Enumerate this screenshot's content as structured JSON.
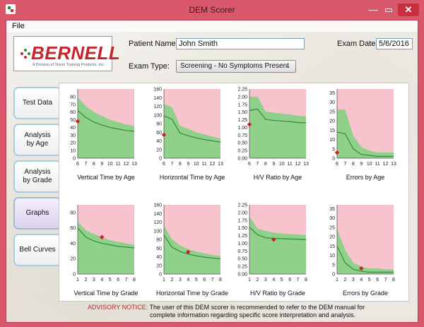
{
  "window": {
    "title": "DEM Scorer",
    "min_glyph": "—",
    "max_glyph": "▭",
    "close_glyph": "✕"
  },
  "menu": {
    "file": "File"
  },
  "logo": {
    "name": "BERNELL",
    "subtitle": "A Division of Vision Training Products, Inc."
  },
  "patient": {
    "name_label": "Patient Name:",
    "name_value": "John Smith",
    "exam_date_label": "Exam Date:",
    "exam_date_value": "5/6/2016",
    "exam_type_label": "Exam Type:",
    "exam_type_value": "Screening - No Symptoms Present"
  },
  "tabs": [
    {
      "label": "Test Data",
      "active": false
    },
    {
      "label": "Analysis by Age",
      "active": false
    },
    {
      "label": "Analysis by Grade",
      "active": false
    },
    {
      "label": "Graphs",
      "active": true
    },
    {
      "label": "Bell Curves",
      "active": false
    }
  ],
  "advisory": {
    "heading": "ADVISORY NOTICE:",
    "line1": "The user of this DEM scorer is recommended to refer to the DEM manual for",
    "line2": "complete information regarding specific score interpretation and analysis."
  },
  "colors": {
    "pink": "#f7c3cc",
    "band": "#8fd18a",
    "line": "#2f8a3a",
    "marker": "#cc1f1f"
  },
  "chart_data": [
    {
      "type": "area",
      "title": "Vertical Time by Age",
      "x": [
        6,
        7,
        8,
        9,
        10,
        11,
        12,
        13
      ],
      "xlim": [
        6,
        13
      ],
      "ylim": [
        0,
        90
      ],
      "yticks": [
        0,
        10,
        20,
        30,
        40,
        50,
        60,
        70,
        80
      ],
      "series": [
        {
          "role": "upper",
          "values": [
            79,
            68,
            60,
            55,
            50,
            47,
            44,
            42
          ]
        },
        {
          "role": "mean",
          "values": [
            62,
            53,
            47,
            43,
            40,
            38,
            36,
            35
          ]
        },
        {
          "role": "lower",
          "values": [
            0,
            0,
            0,
            0,
            0,
            0,
            0,
            0
          ]
        }
      ],
      "patient_point": {
        "x": 6,
        "y": 48
      }
    },
    {
      "type": "area",
      "title": "Horizontal Time by Age",
      "x": [
        6,
        7,
        8,
        9,
        10,
        11,
        12,
        13
      ],
      "xlim": [
        6,
        13
      ],
      "ylim": [
        0,
        160
      ],
      "yticks": [
        0,
        20,
        40,
        60,
        80,
        100,
        120,
        140,
        160
      ],
      "series": [
        {
          "role": "upper",
          "values": [
            125,
            118,
            75,
            68,
            60,
            55,
            50,
            46
          ]
        },
        {
          "role": "mean",
          "values": [
            98,
            90,
            58,
            52,
            47,
            43,
            40,
            37
          ]
        },
        {
          "role": "lower",
          "values": [
            0,
            0,
            0,
            0,
            0,
            0,
            0,
            0
          ]
        }
      ],
      "patient_point": {
        "x": 6,
        "y": 54
      }
    },
    {
      "type": "area",
      "title": "H/V Ratio by Age",
      "x": [
        6,
        7,
        8,
        9,
        10,
        11,
        12,
        13
      ],
      "xlim": [
        6,
        13
      ],
      "ylim": [
        0,
        2.25
      ],
      "yticks": [
        0,
        0.25,
        0.5,
        0.75,
        1.0,
        1.25,
        1.5,
        1.75,
        2.0,
        2.25
      ],
      "ytick_labels": [
        "0.00",
        "0.25",
        "0.50",
        "0.75",
        "1.00",
        "1.25",
        "1.50",
        "1.75",
        "2.00",
        "2.25"
      ],
      "series": [
        {
          "role": "upper",
          "values": [
            2.0,
            2.0,
            1.52,
            1.48,
            1.45,
            1.42,
            1.38,
            1.36
          ]
        },
        {
          "role": "mean",
          "values": [
            1.55,
            1.6,
            1.26,
            1.23,
            1.21,
            1.19,
            1.16,
            1.15
          ]
        },
        {
          "role": "lower",
          "values": [
            0,
            0,
            0,
            0,
            0,
            0,
            0,
            0
          ]
        }
      ],
      "patient_point": {
        "x": 6,
        "y": 1.1
      }
    },
    {
      "type": "area",
      "title": "Errors by Age",
      "x": [
        6,
        7,
        8,
        9,
        10,
        11,
        12,
        13
      ],
      "xlim": [
        6,
        13
      ],
      "ylim": [
        0,
        37
      ],
      "yticks": [
        0,
        5,
        10,
        15,
        20,
        25,
        30,
        35
      ],
      "series": [
        {
          "role": "upper",
          "values": [
            26,
            26,
            12,
            6,
            4,
            3,
            3,
            3
          ]
        },
        {
          "role": "mean",
          "values": [
            14,
            13,
            5,
            2,
            1.5,
            1,
            1,
            1
          ]
        },
        {
          "role": "lower",
          "values": [
            0,
            0,
            0,
            0,
            0,
            0,
            0,
            0
          ]
        }
      ],
      "patient_point": {
        "x": 6,
        "y": 3
      }
    },
    {
      "type": "area",
      "title": "Vertical Time by Grade",
      "x": [
        1,
        2,
        3,
        4,
        5,
        6,
        7,
        8
      ],
      "xlim": [
        1,
        8
      ],
      "ylim": [
        0,
        90
      ],
      "yticks": [
        0,
        20,
        40,
        60,
        80
      ],
      "series": [
        {
          "role": "upper",
          "values": [
            68,
            57,
            52,
            48,
            44,
            42,
            40,
            38
          ]
        },
        {
          "role": "mean",
          "values": [
            60,
            48,
            43,
            40,
            38,
            36,
            35,
            34
          ]
        },
        {
          "role": "lower",
          "values": [
            0,
            0,
            0,
            0,
            0,
            0,
            0,
            0
          ]
        }
      ],
      "patient_point": {
        "x": 4,
        "y": 48
      }
    },
    {
      "type": "area",
      "title": "Horizontal Time by Grade",
      "x": [
        1,
        2,
        3,
        4,
        5,
        6,
        7,
        8
      ],
      "xlim": [
        1,
        8
      ],
      "ylim": [
        0,
        160
      ],
      "yticks": [
        0,
        20,
        40,
        60,
        80,
        100,
        120,
        140,
        160
      ],
      "series": [
        {
          "role": "upper",
          "values": [
            112,
            80,
            66,
            58,
            52,
            48,
            44,
            42
          ]
        },
        {
          "role": "mean",
          "values": [
            90,
            62,
            52,
            46,
            42,
            39,
            37,
            35
          ]
        },
        {
          "role": "lower",
          "values": [
            0,
            0,
            0,
            0,
            0,
            0,
            0,
            0
          ]
        }
      ],
      "patient_point": {
        "x": 4,
        "y": 51
      }
    },
    {
      "type": "area",
      "title": "H/V Ratio by Grade",
      "x": [
        1,
        2,
        3,
        4,
        5,
        6,
        7,
        8
      ],
      "xlim": [
        1,
        8
      ],
      "ylim": [
        0,
        2.25
      ],
      "yticks": [
        0,
        0.25,
        0.5,
        0.75,
        1.0,
        1.25,
        1.5,
        1.75,
        2.0,
        2.25
      ],
      "ytick_labels": [
        "0.00",
        "0.25",
        "0.50",
        "0.75",
        "1.00",
        "1.25",
        "1.50",
        "1.75",
        "2.00",
        "2.25"
      ],
      "series": [
        {
          "role": "upper",
          "values": [
            1.88,
            1.48,
            1.4,
            1.35,
            1.32,
            1.3,
            1.28,
            1.27
          ]
        },
        {
          "role": "mean",
          "values": [
            1.52,
            1.28,
            1.18,
            1.16,
            1.15,
            1.14,
            1.13,
            1.12
          ]
        },
        {
          "role": "lower",
          "values": [
            0,
            0,
            0,
            0,
            0,
            0,
            0,
            0
          ]
        }
      ],
      "patient_point": {
        "x": 4,
        "y": 1.12
      }
    },
    {
      "type": "area",
      "title": "Errors by Grade",
      "x": [
        1,
        2,
        3,
        4,
        5,
        6,
        7,
        8
      ],
      "xlim": [
        1,
        8
      ],
      "ylim": [
        0,
        37
      ],
      "yticks": [
        0,
        5,
        10,
        15,
        20,
        25,
        30,
        35
      ],
      "series": [
        {
          "role": "upper",
          "values": [
            24,
            13,
            6,
            4,
            3,
            3,
            2.5,
            2.5
          ]
        },
        {
          "role": "mean",
          "values": [
            15,
            6,
            2.5,
            1.5,
            1,
            1,
            1,
            1
          ]
        },
        {
          "role": "lower",
          "values": [
            0,
            0,
            0,
            0,
            0,
            0,
            0,
            0
          ]
        }
      ],
      "patient_point": {
        "x": 4,
        "y": 3
      }
    }
  ]
}
